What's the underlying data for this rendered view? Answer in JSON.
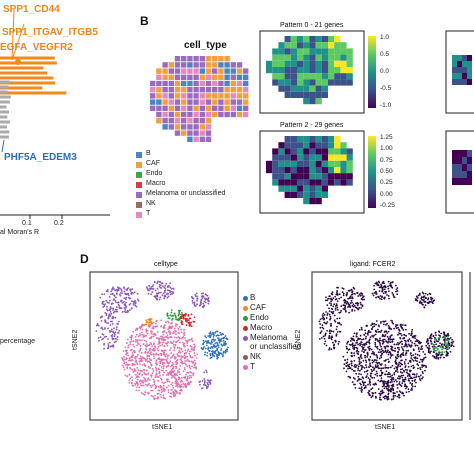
{
  "panels": {
    "B": {
      "letter": "B",
      "map_title": "cell_type"
    },
    "D": {
      "letter": "D"
    }
  },
  "panel_a": {
    "labels_orange": [
      "SPP1_CD44",
      "SPP1_ITGAV_ITGB5",
      "EGFA_VEGFR2"
    ],
    "label_blue": "PHF5A_EDEM3",
    "xlabel": "al Moran's R",
    "ticks": [
      "0.1",
      "0.2"
    ]
  },
  "panel_c": {
    "partial_label": "percentage"
  },
  "legend_b": [
    {
      "label": "B",
      "color": "#4a86c5"
    },
    {
      "label": "CAF",
      "color": "#f0a040"
    },
    {
      "label": "Endo",
      "color": "#3aa64a"
    },
    {
      "label": "Macro",
      "color": "#d93a3a"
    },
    {
      "label": "Melanoma or unclassified",
      "color": "#9b6bbf"
    },
    {
      "label": "NK",
      "color": "#9a6a5a"
    },
    {
      "label": "T",
      "color": "#e58ac0"
    }
  ],
  "heatmaps": [
    {
      "title": "Pattern 0 - 21 genes",
      "colorbar_ticks": [
        "1.0",
        "0.5",
        "0.0",
        "-0.5",
        "-1.0"
      ]
    },
    {
      "title": "Pattern 2 - 29 genes",
      "colorbar_ticks": [
        "1.25",
        "1.00",
        "0.75",
        "0.50",
        "0.25",
        "0.00",
        "-0.25"
      ]
    }
  ],
  "tsne": {
    "celltype_title": "celltype",
    "ligand_title": "ligand: FCER2",
    "xlabel": "tSNE1",
    "ylabel": "tSNE2",
    "legend": [
      {
        "label": "B",
        "color": "#2c6fbf"
      },
      {
        "label": "CAF",
        "color": "#f08a1c"
      },
      {
        "label": "Endo",
        "color": "#2a9a3a"
      },
      {
        "label": "Macro",
        "color": "#d02a2a"
      },
      {
        "label": "Melanoma",
        "color": "#8a56b8"
      },
      {
        "label": "or unclassified",
        "color": ""
      },
      {
        "label": "NK",
        "color": "#8a5a4a"
      },
      {
        "label": "T",
        "color": "#e070b0"
      }
    ]
  }
}
